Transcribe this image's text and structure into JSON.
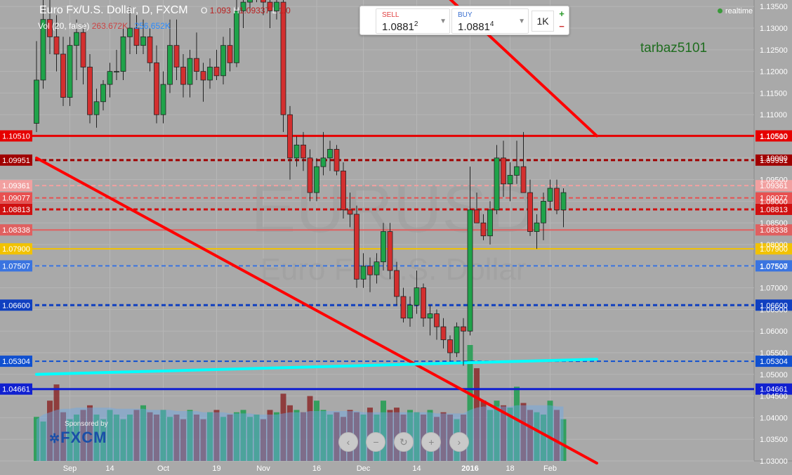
{
  "header": {
    "title": "Euro Fx/U.S. Dollar, D, FXCM",
    "ohlc_label_o": "O",
    "ohlc_open": "1.093",
    "ohlc_label_h": "H",
    "ohlc_high": "1.09337",
    "ohlc_label_l": "L",
    "ohlc_low": "1.0"
  },
  "volume_legend": {
    "label": "Vol (20, false)",
    "value1": "263.672K",
    "value2": "256.652K"
  },
  "trade_panel": {
    "sell_label": "SELL",
    "sell_price": "1.0881",
    "sell_pip": "2",
    "buy_label": "BUY",
    "buy_price": "1.0881",
    "buy_pip": "4",
    "quantity": "1K",
    "plus_label": "+",
    "minus_label": "−"
  },
  "realtime_label": "realtime",
  "username": "tarbaz5101",
  "watermark": {
    "symbol": "EURUSD",
    "name": "Euro Fx/U.S. Dollar"
  },
  "sponsor": {
    "text": "Sponsored by",
    "brand": "FXCM"
  },
  "nav_buttons": [
    "‹",
    "−",
    "↻",
    "+",
    "›"
  ],
  "colors": {
    "background": "#a9a9a9",
    "bull": "#1fa34a",
    "bear": "#d32f2f",
    "trend_line": "#ff0000",
    "cyan_line": "#00ffff"
  },
  "chart_data": {
    "type": "candlestick",
    "symbol": "EURUSD",
    "timeframe": "D",
    "source": "FXCM",
    "ylim": [
      1.03,
      1.1365
    ],
    "y_ticks": [
      1.135,
      1.13,
      1.125,
      1.12,
      1.115,
      1.11,
      1.105,
      1.1,
      1.095,
      1.09,
      1.085,
      1.08,
      1.075,
      1.07,
      1.065,
      1.06,
      1.055,
      1.05,
      1.045,
      1.04,
      1.035,
      1.03
    ],
    "x_ticks": [
      "Sep",
      "14",
      "Oct",
      "19",
      "Nov",
      "16",
      "Dec",
      "14",
      "2016",
      "18",
      "Feb"
    ],
    "x_tick_index": [
      5,
      11,
      19,
      27,
      34,
      42,
      49,
      57,
      65,
      71,
      77
    ],
    "n_slots": 80,
    "candles": [
      {
        "i": 0,
        "o": 1.108,
        "h": 1.127,
        "l": 1.106,
        "c": 1.118
      },
      {
        "i": 1,
        "o": 1.118,
        "h": 1.138,
        "l": 1.116,
        "c": 1.132
      },
      {
        "i": 2,
        "o": 1.132,
        "h": 1.138,
        "l": 1.124,
        "c": 1.128
      },
      {
        "i": 3,
        "o": 1.128,
        "h": 1.133,
        "l": 1.12,
        "c": 1.124
      },
      {
        "i": 4,
        "o": 1.124,
        "h": 1.128,
        "l": 1.112,
        "c": 1.114
      },
      {
        "i": 5,
        "o": 1.114,
        "h": 1.128,
        "l": 1.112,
        "c": 1.126
      },
      {
        "i": 6,
        "o": 1.126,
        "h": 1.132,
        "l": 1.118,
        "c": 1.129
      },
      {
        "i": 7,
        "o": 1.129,
        "h": 1.131,
        "l": 1.117,
        "c": 1.121
      },
      {
        "i": 8,
        "o": 1.121,
        "h": 1.124,
        "l": 1.108,
        "c": 1.11
      },
      {
        "i": 9,
        "o": 1.11,
        "h": 1.116,
        "l": 1.107,
        "c": 1.113
      },
      {
        "i": 10,
        "o": 1.113,
        "h": 1.118,
        "l": 1.111,
        "c": 1.117
      },
      {
        "i": 11,
        "o": 1.117,
        "h": 1.122,
        "l": 1.114,
        "c": 1.12
      },
      {
        "i": 12,
        "o": 1.12,
        "h": 1.125,
        "l": 1.118,
        "c": 1.12
      },
      {
        "i": 13,
        "o": 1.12,
        "h": 1.131,
        "l": 1.118,
        "c": 1.128
      },
      {
        "i": 14,
        "o": 1.128,
        "h": 1.135,
        "l": 1.124,
        "c": 1.13
      },
      {
        "i": 15,
        "o": 1.13,
        "h": 1.133,
        "l": 1.124,
        "c": 1.126
      },
      {
        "i": 16,
        "o": 1.126,
        "h": 1.132,
        "l": 1.124,
        "c": 1.128
      },
      {
        "i": 17,
        "o": 1.128,
        "h": 1.13,
        "l": 1.12,
        "c": 1.122
      },
      {
        "i": 18,
        "o": 1.122,
        "h": 1.126,
        "l": 1.108,
        "c": 1.11
      },
      {
        "i": 19,
        "o": 1.11,
        "h": 1.12,
        "l": 1.108,
        "c": 1.117
      },
      {
        "i": 20,
        "o": 1.117,
        "h": 1.132,
        "l": 1.115,
        "c": 1.126
      },
      {
        "i": 21,
        "o": 1.126,
        "h": 1.132,
        "l": 1.118,
        "c": 1.121
      },
      {
        "i": 22,
        "o": 1.121,
        "h": 1.124,
        "l": 1.114,
        "c": 1.117
      },
      {
        "i": 23,
        "o": 1.117,
        "h": 1.125,
        "l": 1.114,
        "c": 1.123
      },
      {
        "i": 24,
        "o": 1.123,
        "h": 1.129,
        "l": 1.118,
        "c": 1.12
      },
      {
        "i": 25,
        "o": 1.12,
        "h": 1.122,
        "l": 1.113,
        "c": 1.118
      },
      {
        "i": 26,
        "o": 1.118,
        "h": 1.123,
        "l": 1.116,
        "c": 1.121
      },
      {
        "i": 27,
        "o": 1.121,
        "h": 1.125,
        "l": 1.118,
        "c": 1.119
      },
      {
        "i": 28,
        "o": 1.119,
        "h": 1.128,
        "l": 1.117,
        "c": 1.126
      },
      {
        "i": 29,
        "o": 1.126,
        "h": 1.13,
        "l": 1.12,
        "c": 1.122
      },
      {
        "i": 30,
        "o": 1.122,
        "h": 1.139,
        "l": 1.121,
        "c": 1.134
      },
      {
        "i": 31,
        "o": 1.134,
        "h": 1.138,
        "l": 1.13,
        "c": 1.136
      },
      {
        "i": 32,
        "o": 1.136,
        "h": 1.14,
        "l": 1.134,
        "c": 1.138
      },
      {
        "i": 33,
        "o": 1.138,
        "h": 1.142,
        "l": 1.136,
        "c": 1.14
      },
      {
        "i": 34,
        "o": 1.14,
        "h": 1.142,
        "l": 1.133,
        "c": 1.136
      },
      {
        "i": 35,
        "o": 1.136,
        "h": 1.138,
        "l": 1.13,
        "c": 1.134
      },
      {
        "i": 36,
        "o": 1.134,
        "h": 1.138,
        "l": 1.132,
        "c": 1.136
      },
      {
        "i": 37,
        "o": 1.136,
        "h": 1.138,
        "l": 1.106,
        "c": 1.11
      },
      {
        "i": 38,
        "o": 1.11,
        "h": 1.112,
        "l": 1.095,
        "c": 1.1
      },
      {
        "i": 39,
        "o": 1.1,
        "h": 1.105,
        "l": 1.098,
        "c": 1.103
      },
      {
        "i": 40,
        "o": 1.103,
        "h": 1.106,
        "l": 1.097,
        "c": 1.1
      },
      {
        "i": 41,
        "o": 1.1,
        "h": 1.102,
        "l": 1.09,
        "c": 1.092
      },
      {
        "i": 42,
        "o": 1.092,
        "h": 1.1,
        "l": 1.09,
        "c": 1.098
      },
      {
        "i": 43,
        "o": 1.098,
        "h": 1.106,
        "l": 1.096,
        "c": 1.1
      },
      {
        "i": 44,
        "o": 1.1,
        "h": 1.104,
        "l": 1.097,
        "c": 1.102
      },
      {
        "i": 45,
        "o": 1.102,
        "h": 1.103,
        "l": 1.096,
        "c": 1.097
      },
      {
        "i": 46,
        "o": 1.097,
        "h": 1.099,
        "l": 1.086,
        "c": 1.088
      },
      {
        "i": 47,
        "o": 1.088,
        "h": 1.092,
        "l": 1.084,
        "c": 1.087
      },
      {
        "i": 48,
        "o": 1.087,
        "h": 1.089,
        "l": 1.07,
        "c": 1.072
      },
      {
        "i": 49,
        "o": 1.072,
        "h": 1.078,
        "l": 1.07,
        "c": 1.075
      },
      {
        "i": 50,
        "o": 1.075,
        "h": 1.077,
        "l": 1.069,
        "c": 1.073
      },
      {
        "i": 51,
        "o": 1.073,
        "h": 1.078,
        "l": 1.071,
        "c": 1.076
      },
      {
        "i": 52,
        "o": 1.076,
        "h": 1.085,
        "l": 1.074,
        "c": 1.083
      },
      {
        "i": 53,
        "o": 1.083,
        "h": 1.085,
        "l": 1.072,
        "c": 1.074
      },
      {
        "i": 54,
        "o": 1.074,
        "h": 1.076,
        "l": 1.066,
        "c": 1.068
      },
      {
        "i": 55,
        "o": 1.068,
        "h": 1.07,
        "l": 1.062,
        "c": 1.063
      },
      {
        "i": 56,
        "o": 1.063,
        "h": 1.068,
        "l": 1.061,
        "c": 1.066
      },
      {
        "i": 57,
        "o": 1.066,
        "h": 1.074,
        "l": 1.064,
        "c": 1.07
      },
      {
        "i": 58,
        "o": 1.07,
        "h": 1.071,
        "l": 1.061,
        "c": 1.063
      },
      {
        "i": 59,
        "o": 1.063,
        "h": 1.066,
        "l": 1.059,
        "c": 1.064
      },
      {
        "i": 60,
        "o": 1.064,
        "h": 1.065,
        "l": 1.058,
        "c": 1.061
      },
      {
        "i": 61,
        "o": 1.061,
        "h": 1.063,
        "l": 1.056,
        "c": 1.058
      },
      {
        "i": 62,
        "o": 1.058,
        "h": 1.059,
        "l": 1.053,
        "c": 1.055
      },
      {
        "i": 63,
        "o": 1.055,
        "h": 1.062,
        "l": 1.054,
        "c": 1.061
      },
      {
        "i": 64,
        "o": 1.061,
        "h": 1.063,
        "l": 1.052,
        "c": 1.06
      },
      {
        "i": 65,
        "o": 1.06,
        "h": 1.098,
        "l": 1.059,
        "c": 1.088
      },
      {
        "i": 66,
        "o": 1.088,
        "h": 1.092,
        "l": 1.085,
        "c": 1.085
      },
      {
        "i": 67,
        "o": 1.085,
        "h": 1.087,
        "l": 1.081,
        "c": 1.082
      },
      {
        "i": 68,
        "o": 1.082,
        "h": 1.09,
        "l": 1.08,
        "c": 1.088
      },
      {
        "i": 69,
        "o": 1.088,
        "h": 1.103,
        "l": 1.087,
        "c": 1.1
      },
      {
        "i": 70,
        "o": 1.1,
        "h": 1.104,
        "l": 1.091,
        "c": 1.094
      },
      {
        "i": 71,
        "o": 1.094,
        "h": 1.099,
        "l": 1.09,
        "c": 1.096
      },
      {
        "i": 72,
        "o": 1.096,
        "h": 1.104,
        "l": 1.094,
        "c": 1.098
      },
      {
        "i": 73,
        "o": 1.098,
        "h": 1.106,
        "l": 1.092,
        "c": 1.092
      },
      {
        "i": 74,
        "o": 1.092,
        "h": 1.095,
        "l": 1.082,
        "c": 1.083
      },
      {
        "i": 75,
        "o": 1.083,
        "h": 1.087,
        "l": 1.079,
        "c": 1.085
      },
      {
        "i": 76,
        "o": 1.085,
        "h": 1.092,
        "l": 1.081,
        "c": 1.09
      },
      {
        "i": 77,
        "o": 1.09,
        "h": 1.095,
        "l": 1.088,
        "c": 1.093
      },
      {
        "i": 78,
        "o": 1.093,
        "h": 1.095,
        "l": 1.087,
        "c": 1.088
      },
      {
        "i": 79,
        "o": 1.088,
        "h": 1.093,
        "l": 1.084,
        "c": 1.092
      }
    ],
    "horizontal_lines": [
      {
        "price": 1.1051,
        "label": "1.10510",
        "color": "#e60000",
        "style": "solid",
        "width": 3
      },
      {
        "price": 1.09951,
        "label": "1.09951",
        "color": "#a00000",
        "style": "dashed",
        "width": 3
      },
      {
        "price": 1.09361,
        "label": "1.09361",
        "color": "#f2a0a0",
        "style": "dashed",
        "width": 2
      },
      {
        "price": 1.09077,
        "label": "1.09077",
        "color": "#e85050",
        "style": "dashed",
        "width": 2
      },
      {
        "price": 1.08813,
        "label": "1.08813",
        "color": "#d01010",
        "style": "dashed",
        "width": 3
      },
      {
        "price": 1.08338,
        "label": "1.08338",
        "color": "#e06060",
        "style": "solid",
        "width": 2
      },
      {
        "price": 1.079,
        "label": "1.07900",
        "color": "#f2c200",
        "style": "solid",
        "width": 2
      },
      {
        "price": 1.07507,
        "label": "1.07507",
        "color": "#3a74e0",
        "style": "dashed",
        "width": 2
      },
      {
        "price": 1.066,
        "label": "1.06600",
        "color": "#1040c0",
        "style": "dashed",
        "width": 3
      },
      {
        "price": 1.05304,
        "label": "1.05304",
        "color": "#1050d0",
        "style": "dashed",
        "width": 2
      },
      {
        "price": 1.04661,
        "label": "1.04661",
        "color": "#1020d0",
        "style": "solid",
        "width": 3
      }
    ],
    "trend_lines": [
      {
        "name": "upper",
        "p1": [
          59.7,
          1.14
        ],
        "p2": [
          84,
          1.1051
        ],
        "color": "#ff0000",
        "width": 4
      },
      {
        "name": "lower",
        "p1": [
          0,
          1.1
        ],
        "p2": [
          84,
          1.0295
        ],
        "color": "#ff0000",
        "width": 4
      },
      {
        "name": "support",
        "p1": [
          0,
          1.05
        ],
        "p2": [
          84,
          1.0535
        ],
        "color": "#00ffff",
        "width": 4
      }
    ],
    "volume": {
      "max": 1.0,
      "values": [
        0.38,
        0.34,
        0.52,
        0.66,
        0.42,
        0.36,
        0.4,
        0.44,
        0.48,
        0.4,
        0.36,
        0.44,
        0.4,
        0.36,
        0.4,
        0.44,
        0.48,
        0.42,
        0.4,
        0.44,
        0.38,
        0.4,
        0.36,
        0.44,
        0.4,
        0.36,
        0.42,
        0.44,
        0.38,
        0.4,
        0.42,
        0.44,
        0.38,
        0.4,
        0.36,
        0.44,
        0.42,
        0.58,
        0.48,
        0.44,
        0.42,
        0.56,
        0.52,
        0.44,
        0.4,
        0.42,
        0.38,
        0.44,
        0.42,
        0.4,
        0.46,
        0.4,
        0.52,
        0.44,
        0.46,
        0.4,
        0.44,
        0.42,
        0.4,
        0.44,
        0.38,
        0.42,
        0.4,
        0.36,
        0.4,
        1.0,
        0.8,
        0.52,
        0.44,
        0.52,
        0.48,
        0.46,
        0.64,
        0.5,
        0.44,
        0.42,
        0.4,
        0.52,
        0.44,
        0.36
      ],
      "ma": [
        0.36,
        0.4,
        0.42,
        0.44,
        0.45,
        0.45,
        0.46,
        0.46,
        0.46,
        0.46,
        0.46,
        0.46,
        0.45,
        0.45,
        0.45,
        0.45,
        0.45,
        0.44,
        0.44,
        0.44,
        0.44,
        0.43,
        0.43,
        0.43,
        0.43,
        0.42,
        0.42,
        0.42,
        0.42,
        0.41,
        0.41,
        0.41,
        0.41,
        0.4,
        0.4,
        0.4,
        0.4,
        0.41,
        0.42,
        0.42,
        0.42,
        0.43,
        0.43,
        0.43,
        0.43,
        0.43,
        0.43,
        0.43,
        0.43,
        0.42,
        0.42,
        0.42,
        0.42,
        0.42,
        0.42,
        0.42,
        0.42,
        0.42,
        0.42,
        0.42,
        0.41,
        0.41,
        0.41,
        0.41,
        0.41,
        0.44,
        0.46,
        0.47,
        0.47,
        0.47,
        0.47,
        0.47,
        0.48,
        0.48,
        0.48,
        0.48,
        0.48,
        0.48,
        0.47,
        0.47
      ]
    }
  }
}
